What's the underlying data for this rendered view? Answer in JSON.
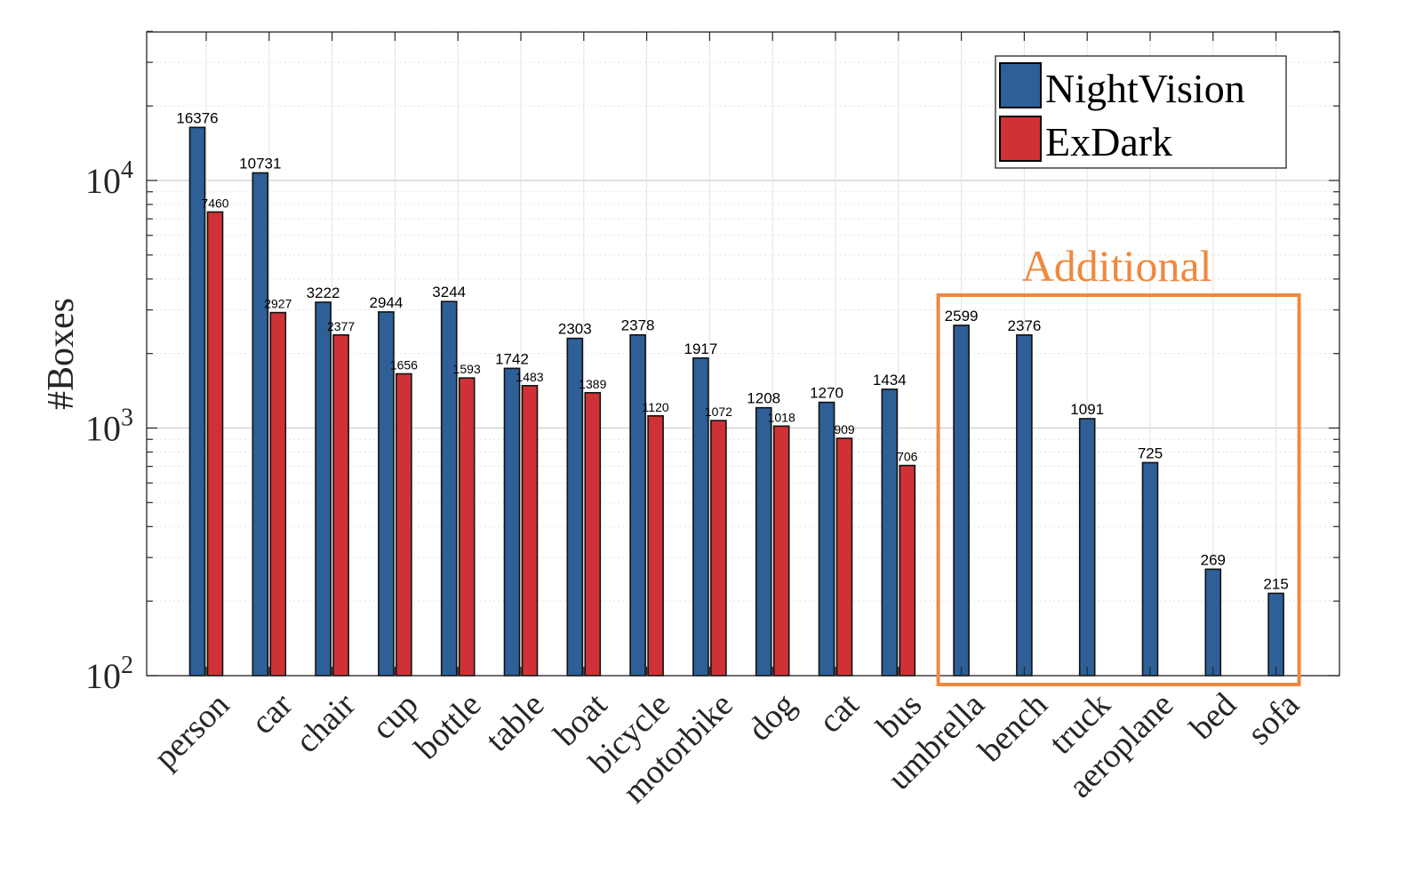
{
  "chart_data": {
    "type": "bar",
    "ylabel": "#Boxes",
    "yscale": "log",
    "ylim": [
      100,
      40000
    ],
    "yticks": [
      {
        "value": 100,
        "base": "10",
        "exp": "2"
      },
      {
        "value": 1000,
        "base": "10",
        "exp": "3"
      },
      {
        "value": 10000,
        "base": "10",
        "exp": "4"
      }
    ],
    "grid": true,
    "legend_position": "top-right",
    "categories": [
      "person",
      "car",
      "chair",
      "cup",
      "bottle",
      "table",
      "boat",
      "bicycle",
      "motorbike",
      "dog",
      "cat",
      "bus",
      "umbrella",
      "bench",
      "truck",
      "aeroplane",
      "bed",
      "sofa"
    ],
    "series": [
      {
        "name": "NightVision",
        "color": "#2e5f97",
        "values": [
          16376,
          10731,
          3222,
          2944,
          3244,
          1742,
          2303,
          2378,
          1917,
          1208,
          1270,
          1434,
          2599,
          2376,
          1091,
          725,
          269,
          215
        ]
      },
      {
        "name": "ExDark",
        "color": "#cf3236",
        "values": [
          7460,
          2927,
          2377,
          1656,
          1593,
          1483,
          1389,
          1120,
          1072,
          1018,
          909,
          706,
          null,
          null,
          null,
          null,
          null,
          null
        ]
      }
    ],
    "annotation": {
      "text": "Additional",
      "color": "#f0883e",
      "first_category": "umbrella",
      "last_category": "sofa"
    }
  }
}
